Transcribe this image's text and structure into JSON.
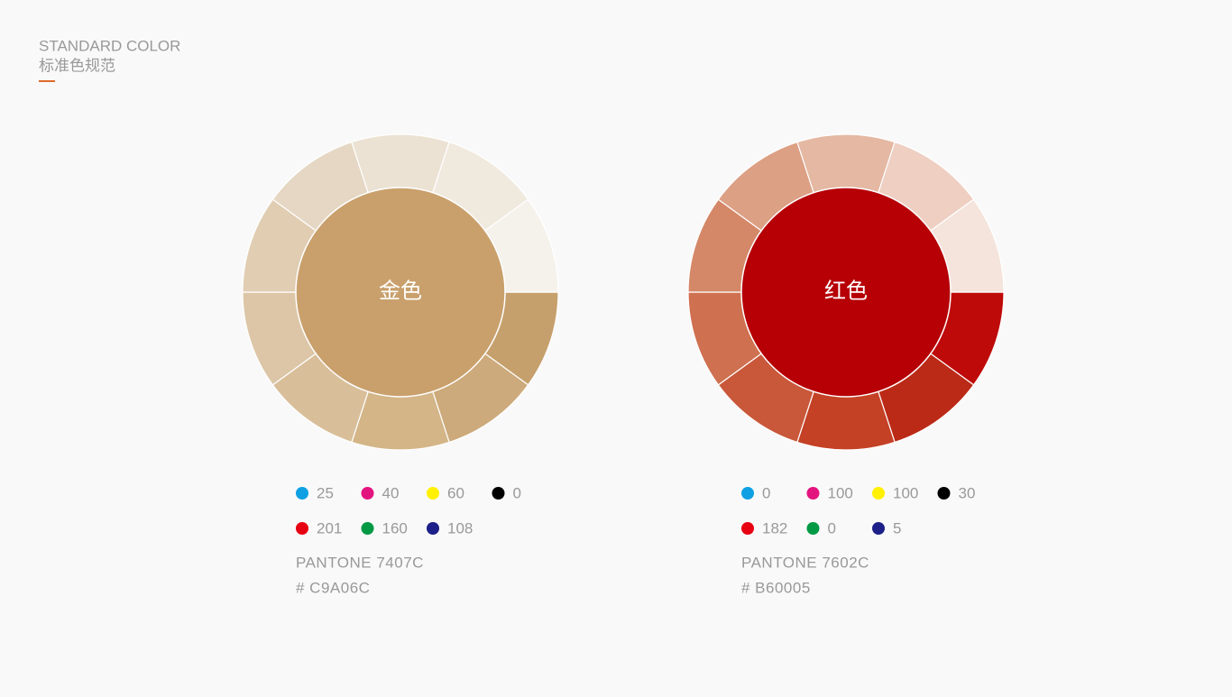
{
  "header": {
    "title": "STANDARD COLOR",
    "subtitle": "标准色规范"
  },
  "swatches": [
    {
      "name": "金色",
      "color": "#C9A06C",
      "ring_colors": [
        "#c6a06c",
        "#cdaa7b",
        "#d3b588",
        "#d8bf9a",
        "#dcc6a7",
        "#e0cdb2",
        "#e5d7c3",
        "#ebe2d3",
        "#f0e9de",
        "#f5f1eb"
      ],
      "cmyk": [
        25,
        40,
        60,
        0
      ],
      "rgb": [
        201,
        160,
        108
      ],
      "pantone": "PANTONE 7407C",
      "hex": "# C9A06C"
    },
    {
      "name": "红色",
      "color": "#B60005",
      "ring_colors": [
        "#bf0a0a",
        "#bb2a17",
        "#c44126",
        "#c9583a",
        "#cf7050",
        "#d48868",
        "#dca084",
        "#e4b8a2",
        "#eecfc2",
        "#f4e4dc"
      ],
      "cmyk": [
        0,
        100,
        100,
        30
      ],
      "rgb": [
        182,
        0,
        5
      ],
      "pantone": "PANTONE 7602C",
      "hex": "# B60005"
    }
  ]
}
